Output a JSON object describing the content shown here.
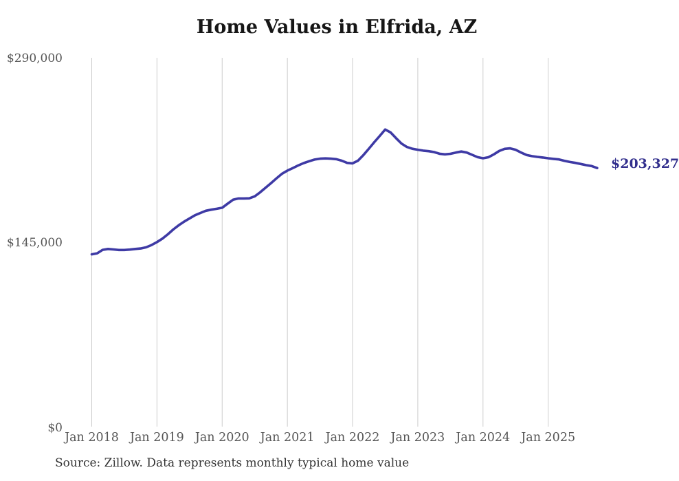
{
  "page": {
    "source_note": "Source: Zillow. Data represents monthly typical home value"
  },
  "colors": {
    "line": "#3e3aa5",
    "end_label": "#322f8d",
    "axis_text": "#565656",
    "gridline": "#cccccc",
    "title_text": "#161616"
  },
  "chart_data": {
    "type": "line",
    "title": "Home Values in Elfrida, AZ",
    "xlabel": "",
    "ylabel": "",
    "frequency": "monthly",
    "x_start": "2018-01",
    "x_end": "2025-10",
    "x_tick_labels": [
      "Jan 2018",
      "Jan 2019",
      "Jan 2020",
      "Jan 2021",
      "Jan 2022",
      "Jan 2023",
      "Jan 2024",
      "Jan 2025"
    ],
    "y_tick_labels": [
      "$290,000",
      "$145,000",
      "$0"
    ],
    "ylim": [
      0,
      290000
    ],
    "grid": "vertical-only",
    "legend": "none",
    "end_label": "$203,327",
    "last_value": 203327,
    "series": [
      {
        "name": "Typical home value",
        "values": [
          135500,
          136300,
          139000,
          139700,
          139300,
          138900,
          138900,
          139200,
          139700,
          140100,
          141000,
          142800,
          145100,
          147800,
          151200,
          155000,
          158300,
          161200,
          163700,
          166200,
          168000,
          169700,
          170600,
          171300,
          172100,
          175300,
          178400,
          179400,
          179400,
          179500,
          181100,
          184300,
          187900,
          191500,
          195200,
          198800,
          201300,
          203300,
          205400,
          207200,
          208700,
          210000,
          210700,
          210900,
          210700,
          210300,
          209100,
          207400,
          207000,
          209100,
          213600,
          218600,
          223700,
          228600,
          233600,
          231300,
          226800,
          222600,
          219900,
          218500,
          217700,
          217000,
          216600,
          215900,
          214600,
          214100,
          214500,
          215500,
          216300,
          215500,
          213700,
          211900,
          211000,
          211800,
          214100,
          216800,
          218400,
          218800,
          217700,
          215500,
          213600,
          212700,
          212100,
          211600,
          211000,
          210500,
          210100,
          209000,
          208100,
          207400,
          206500,
          205600,
          204900,
          203327
        ]
      }
    ]
  }
}
